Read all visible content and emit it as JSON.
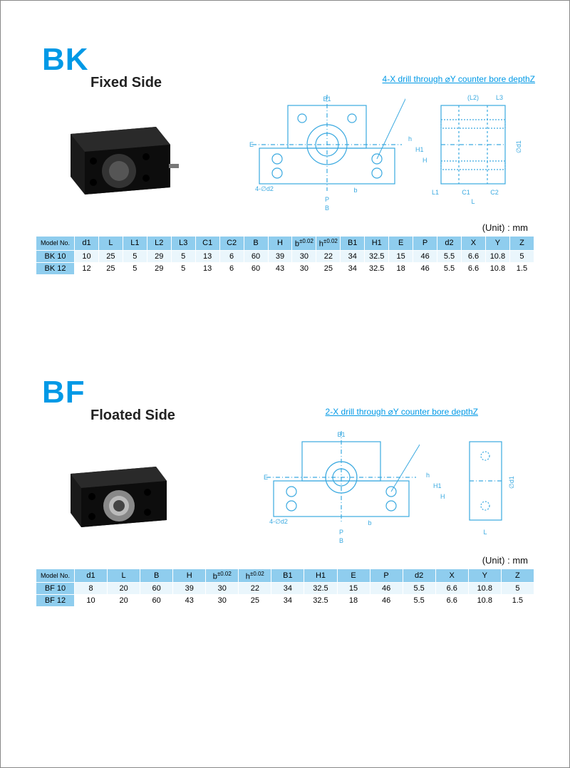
{
  "colors": {
    "accent": "#0099e6",
    "header_row_bg": "#8fcdee",
    "row_alt_bg": "#eaf6fc",
    "row_bg": "#ffffff",
    "text": "#111111",
    "diagram_stroke": "#3aa9e0"
  },
  "unit_label": "(Unit) : mm",
  "bk": {
    "code": "BK",
    "subtitle": "Fixed Side",
    "drill_note": "4-X drill through ⌀Y counter bore depthZ",
    "photo_alt": "BK fixed-side support block",
    "table": {
      "model_header": "Model No.",
      "columns": [
        "d1",
        "L",
        "L1",
        "L2",
        "L3",
        "C1",
        "C2",
        "B",
        "H",
        "b",
        "h",
        "B1",
        "H1",
        "E",
        "P",
        "d2",
        "X",
        "Y",
        "Z"
      ],
      "col_super": {
        "b": "±0.02",
        "h": "±0.02"
      },
      "rows": [
        {
          "model": "BK 10",
          "vals": [
            "10",
            "25",
            "5",
            "29",
            "5",
            "13",
            "6",
            "60",
            "39",
            "30",
            "22",
            "34",
            "32.5",
            "15",
            "46",
            "5.5",
            "6.6",
            "10.8",
            "5"
          ]
        },
        {
          "model": "BK 12",
          "vals": [
            "12",
            "25",
            "5",
            "29",
            "5",
            "13",
            "6",
            "60",
            "43",
            "30",
            "25",
            "34",
            "32.5",
            "18",
            "46",
            "5.5",
            "6.6",
            "10.8",
            "1.5"
          ]
        }
      ]
    }
  },
  "bf": {
    "code": "BF",
    "subtitle": "Floated Side",
    "drill_note": "2-X drill through ⌀Y counter bore depthZ",
    "photo_alt": "BF floated-side support block",
    "table": {
      "model_header": "Model No.",
      "columns": [
        "d1",
        "L",
        "B",
        "H",
        "b",
        "h",
        "B1",
        "H1",
        "E",
        "P",
        "d2",
        "X",
        "Y",
        "Z"
      ],
      "col_super": {
        "b": "±0.02",
        "h": "±0.02"
      },
      "rows": [
        {
          "model": "BF 10",
          "vals": [
            "8",
            "20",
            "60",
            "39",
            "30",
            "22",
            "34",
            "32.5",
            "15",
            "46",
            "5.5",
            "6.6",
            "10.8",
            "5"
          ]
        },
        {
          "model": "BF 12",
          "vals": [
            "10",
            "20",
            "60",
            "43",
            "30",
            "25",
            "34",
            "32.5",
            "18",
            "46",
            "5.5",
            "6.6",
            "10.8",
            "1.5"
          ]
        }
      ]
    }
  }
}
